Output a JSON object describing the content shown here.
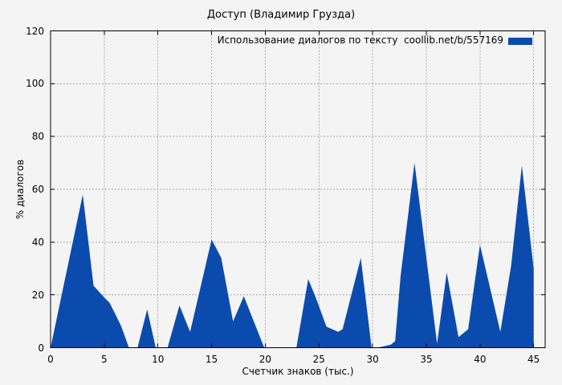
{
  "window": {
    "title": "Доступ (Владимир Грузда)"
  },
  "colors": {
    "background": "#f4f4f4",
    "fill": "#0b4bae",
    "grid": "#aaaaaa",
    "border": "#000000",
    "text": "#000000"
  },
  "chart_data": {
    "type": "area",
    "title": "Доступ (Владимир Грузда)",
    "xlabel": "Счетчик знаков (тыс.)",
    "ylabel": "% диалогов",
    "xlim": [
      0,
      45
    ],
    "ylim": [
      0,
      120
    ],
    "xticks": [
      0,
      5,
      10,
      15,
      20,
      25,
      30,
      35,
      40,
      45
    ],
    "yticks": [
      0,
      20,
      40,
      60,
      80,
      100,
      120
    ],
    "grid": true,
    "legend": {
      "label": "Использование диалогов по тексту  coollib.net/b/557169",
      "position": "top-right-inside"
    },
    "series": [
      {
        "name": "Использование диалогов по тексту coollib.net/b/557169",
        "color": "#0b4bae",
        "points": [
          [
            0,
            0
          ],
          [
            3,
            58
          ],
          [
            4,
            23.5
          ],
          [
            5,
            19
          ],
          [
            5.5,
            17
          ],
          [
            6,
            13
          ],
          [
            6.6,
            8
          ],
          [
            7.3,
            0
          ],
          [
            8.1,
            0
          ],
          [
            9,
            14.5
          ],
          [
            9.8,
            0
          ],
          [
            10.9,
            0
          ],
          [
            12,
            16
          ],
          [
            13,
            6
          ],
          [
            15,
            41
          ],
          [
            15.9,
            34
          ],
          [
            17,
            10
          ],
          [
            18,
            19.5
          ],
          [
            19.9,
            0
          ],
          [
            22.9,
            0
          ],
          [
            24,
            26
          ],
          [
            24.7,
            19
          ],
          [
            25.7,
            8
          ],
          [
            26.8,
            6
          ],
          [
            27.2,
            7
          ],
          [
            28.9,
            34
          ],
          [
            29.9,
            0
          ],
          [
            30.4,
            0
          ],
          [
            31,
            0.5
          ],
          [
            31.7,
            1.2
          ],
          [
            32.1,
            2.5
          ],
          [
            32.6,
            27
          ],
          [
            33.9,
            70
          ],
          [
            36,
            1.5
          ],
          [
            36.9,
            28.5
          ],
          [
            38,
            4
          ],
          [
            38.9,
            7
          ],
          [
            40,
            39
          ],
          [
            41.9,
            6
          ],
          [
            42.9,
            31
          ],
          [
            43.9,
            69
          ],
          [
            45,
            30
          ]
        ]
      }
    ]
  }
}
